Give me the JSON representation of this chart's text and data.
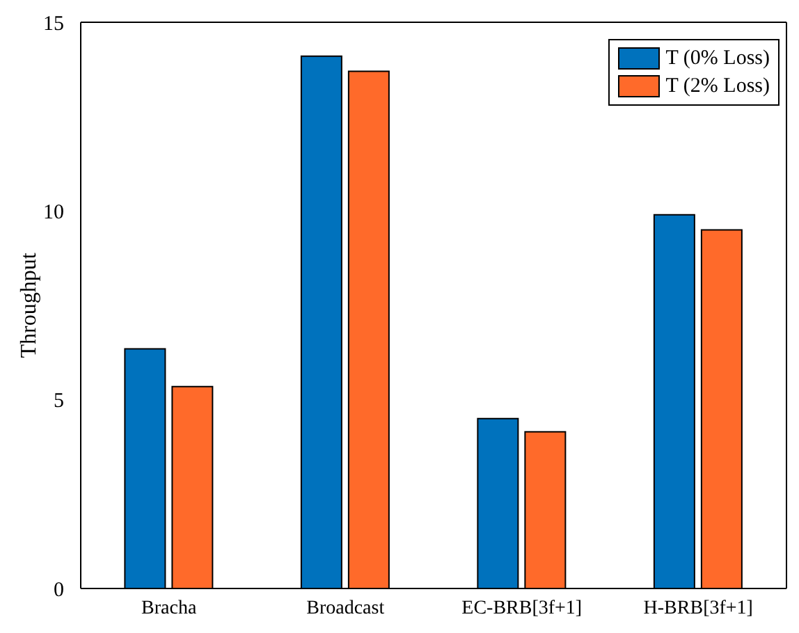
{
  "chart_data": {
    "type": "bar",
    "ylabel": "Throughput",
    "categories": [
      "Bracha",
      "Broadcast",
      "EC-BRB[3f+1]",
      "H-BRB[3f+1]"
    ],
    "series": [
      {
        "name": "T (0% Loss)",
        "color": "#0072bd",
        "values": [
          6.35,
          14.1,
          4.5,
          9.9
        ]
      },
      {
        "name": "T (2% Loss)",
        "color": "#ff6a2a",
        "values": [
          5.35,
          13.7,
          4.15,
          9.5
        ]
      }
    ],
    "ylim": [
      0,
      15
    ],
    "yticks": [
      0,
      5,
      10,
      15
    ],
    "legend": "top right"
  }
}
